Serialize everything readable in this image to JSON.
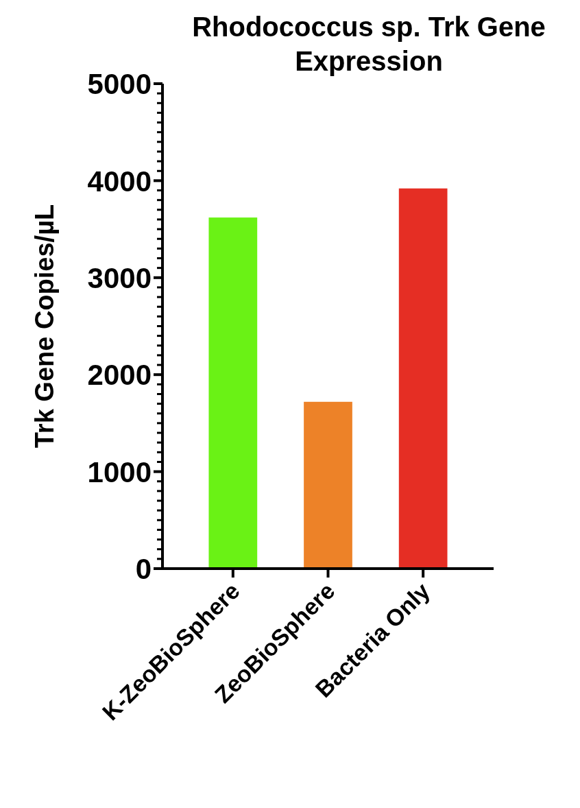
{
  "chart_data": {
    "type": "bar",
    "title": "Rhodococcus sp. Trk Gene Expression",
    "ylabel": "Trk Gene Copies/µL",
    "categories": [
      "K-ZeoBioSphere",
      "ZeoBioSphere",
      "Bacteria Only"
    ],
    "values": [
      3620,
      1720,
      3920
    ],
    "colors": [
      "#6af215",
      "#ed8228",
      "#e52e24"
    ],
    "ylim": [
      0,
      5000
    ],
    "yticks": [
      0,
      {
        "value": 100,
        "label": null
      },
      {
        "value": 200,
        "label": null
      },
      {
        "value": 300,
        "label": null
      },
      {
        "value": 400,
        "label": null
      },
      {
        "value": 500,
        "label": null
      },
      {
        "value": 600,
        "label": null
      },
      {
        "value": 700,
        "label": null
      },
      {
        "value": 800,
        "label": null
      },
      {
        "value": 900,
        "label": null
      },
      1000,
      {
        "value": 1100,
        "label": null
      },
      {
        "value": 1200,
        "label": null
      },
      {
        "value": 1300,
        "label": null
      },
      {
        "value": 1400,
        "label": null
      },
      {
        "value": 1500,
        "label": null
      },
      {
        "value": 1600,
        "label": null
      },
      {
        "value": 1700,
        "label": null
      },
      {
        "value": 1800,
        "label": null
      },
      {
        "value": 1900,
        "label": null
      },
      2000,
      {
        "value": 2100,
        "label": null
      },
      {
        "value": 2200,
        "label": null
      },
      {
        "value": 2300,
        "label": null
      },
      {
        "value": 2400,
        "label": null
      },
      {
        "value": 2500,
        "label": null
      },
      {
        "value": 2600,
        "label": null
      },
      {
        "value": 2700,
        "label": null
      },
      {
        "value": 2800,
        "label": null
      },
      {
        "value": 2900,
        "label": null
      },
      3000,
      {
        "value": 3100,
        "label": null
      },
      {
        "value": 3200,
        "label": null
      },
      {
        "value": 3300,
        "label": null
      },
      {
        "value": 3400,
        "label": null
      },
      {
        "value": 3500,
        "label": null
      },
      {
        "value": 3600,
        "label": null
      },
      {
        "value": 3700,
        "label": null
      },
      {
        "value": 3800,
        "label": null
      },
      {
        "value": 3900,
        "label": null
      },
      4000,
      {
        "value": 4100,
        "label": null
      },
      {
        "value": 4200,
        "label": null
      },
      {
        "value": 4300,
        "label": null
      },
      {
        "value": 4400,
        "label": null
      },
      {
        "value": 4500,
        "label": null
      },
      {
        "value": 4600,
        "label": null
      },
      {
        "value": 4700,
        "label": null
      },
      {
        "value": 4800,
        "label": null
      },
      {
        "value": 4900,
        "label": null
      },
      5000
    ],
    "grid": false
  }
}
